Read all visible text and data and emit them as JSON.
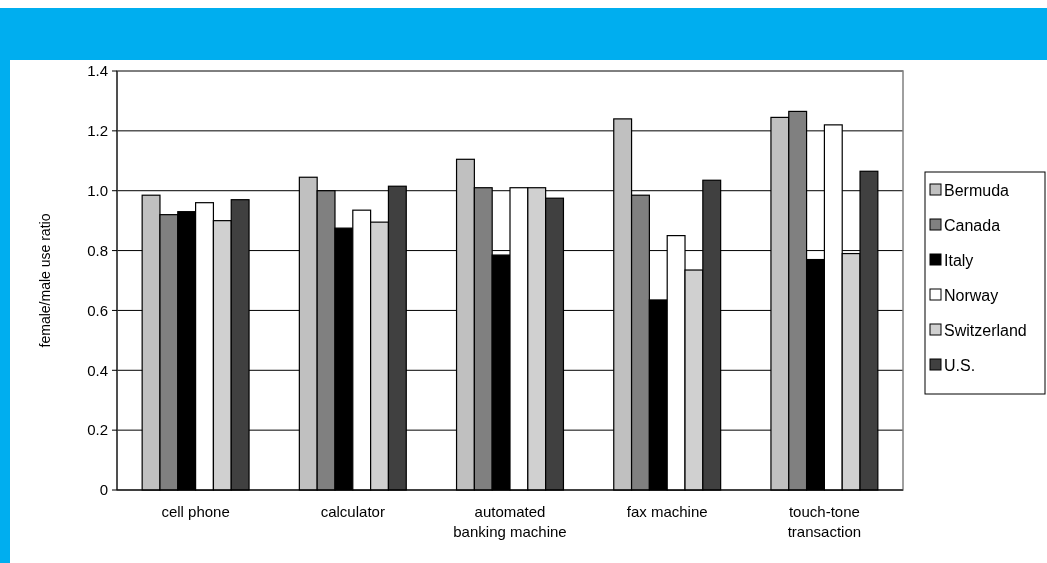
{
  "chart_data": {
    "type": "bar",
    "ylabel": "female/male use ratio",
    "categories": [
      "cell phone",
      "calculator",
      "automated banking machine",
      "fax machine",
      "touch-tone transaction"
    ],
    "series": [
      {
        "name": "Bermuda",
        "color": "#c0c0c0",
        "values": [
          0.985,
          1.045,
          1.105,
          1.24,
          1.245
        ]
      },
      {
        "name": "Canada",
        "color": "#808080",
        "values": [
          0.92,
          1.0,
          1.01,
          0.985,
          1.265
        ]
      },
      {
        "name": "Italy",
        "color": "#000000",
        "values": [
          0.93,
          0.875,
          0.785,
          0.635,
          0.77
        ]
      },
      {
        "name": "Norway",
        "color": "#ffffff",
        "values": [
          0.96,
          0.935,
          1.01,
          0.85,
          1.22
        ]
      },
      {
        "name": "Switzerland",
        "color": "#d0d0d0",
        "values": [
          0.9,
          0.895,
          1.01,
          0.735,
          0.79
        ]
      },
      {
        "name": "U.S.",
        "color": "#404040",
        "values": [
          0.97,
          1.015,
          0.975,
          1.035,
          1.065
        ]
      }
    ],
    "ylim": [
      0,
      1.4
    ],
    "yticks": [
      0,
      {
        "value": 0.2,
        "label": "0.2"
      },
      {
        "value": 0.4,
        "label": "0.4"
      },
      {
        "value": 0.6,
        "label": "0.6"
      },
      {
        "value": 0.8,
        "label": "0.8"
      },
      {
        "value": 1.0,
        "label": "1.0"
      },
      {
        "value": 1.2,
        "label": "1.2"
      },
      {
        "value": 1.4,
        "label": "1.4"
      }
    ],
    "grid": "y",
    "legend": "right"
  }
}
